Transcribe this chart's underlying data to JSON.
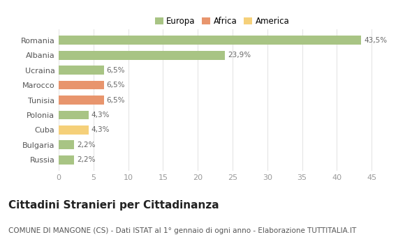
{
  "categories": [
    "Russia",
    "Bulgaria",
    "Cuba",
    "Polonia",
    "Tunisia",
    "Marocco",
    "Ucraina",
    "Albania",
    "Romania"
  ],
  "values": [
    2.2,
    2.2,
    4.3,
    4.3,
    6.5,
    6.5,
    6.5,
    23.9,
    43.5
  ],
  "labels": [
    "2,2%",
    "2,2%",
    "4,3%",
    "4,3%",
    "6,5%",
    "6,5%",
    "6,5%",
    "23,9%",
    "43,5%"
  ],
  "colors": [
    "#a8c484",
    "#a8c484",
    "#f5d07a",
    "#a8c484",
    "#e8956d",
    "#e8956d",
    "#a8c484",
    "#a8c484",
    "#a8c484"
  ],
  "legend": [
    {
      "label": "Europa",
      "color": "#a8c484"
    },
    {
      "label": "Africa",
      "color": "#e8956d"
    },
    {
      "label": "America",
      "color": "#f5d07a"
    }
  ],
  "xlim": [
    0,
    47
  ],
  "xticks": [
    0,
    5,
    10,
    15,
    20,
    25,
    30,
    35,
    40,
    45
  ],
  "title": "Cittadini Stranieri per Cittadinanza",
  "subtitle": "COMUNE DI MANGONE (CS) - Dati ISTAT al 1° gennaio di ogni anno - Elaborazione TUTTITALIA.IT",
  "background_color": "#ffffff",
  "grid_color": "#e5e5e5",
  "bar_height": 0.6,
  "label_fontsize": 7.5,
  "title_fontsize": 11,
  "subtitle_fontsize": 7.5,
  "tick_fontsize": 8,
  "legend_fontsize": 8.5
}
